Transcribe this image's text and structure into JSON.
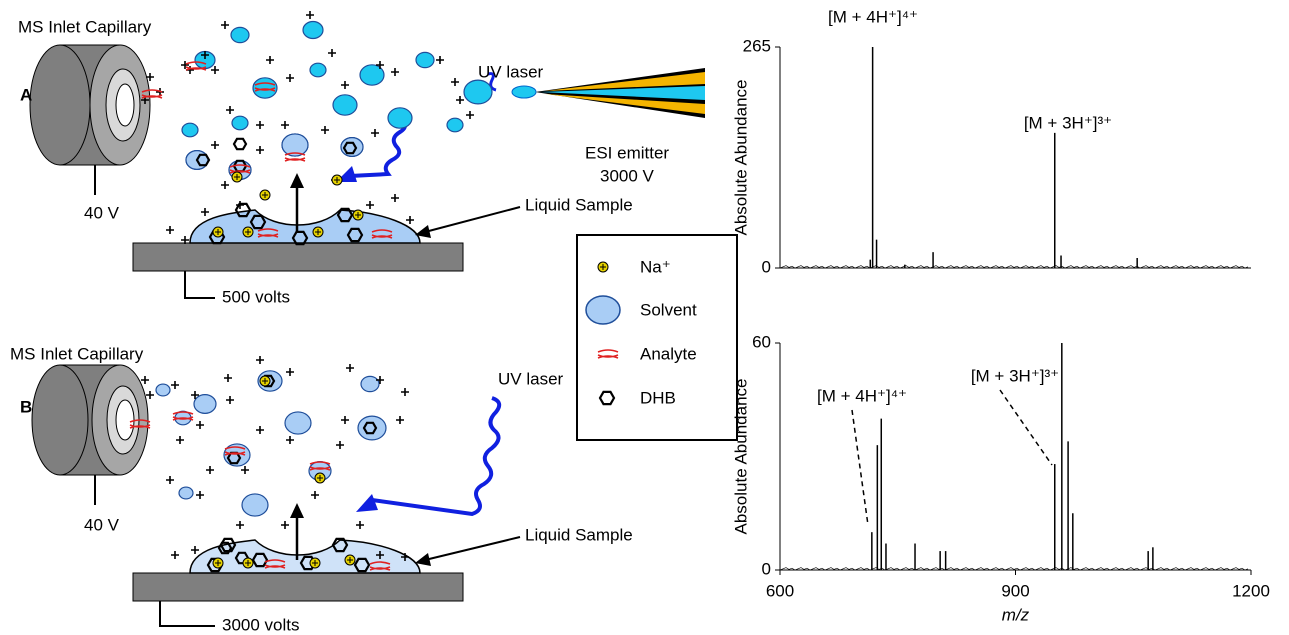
{
  "panel_a": {
    "label": "A",
    "capillary_label": "MS Inlet Capillary",
    "capillary_voltage": "40 V",
    "laser_label": "UV laser",
    "emitter_label": "ESI emitter",
    "emitter_voltage": "3000 V",
    "sample_label": "Liquid Sample",
    "plate_voltage": "500 volts"
  },
  "panel_b": {
    "label": "B",
    "capillary_label": "MS Inlet Capillary",
    "capillary_voltage": "40 V",
    "laser_label": "UV laser",
    "sample_label": "Liquid Sample",
    "plate_voltage": "3000 volts"
  },
  "legend": {
    "items": [
      "Na⁺",
      "Solvent",
      "Analyte",
      "DHB"
    ]
  },
  "chart_data": [
    {
      "type": "stem",
      "y_label": "Absolute Abundance",
      "annotations": [
        "[M + 4H⁺]⁴⁺",
        "[M + 3H⁺]³⁺"
      ],
      "x": [
        715,
        718,
        723,
        759,
        795,
        950,
        958,
        1055
      ],
      "values": [
        10,
        265,
        34,
        4,
        19,
        162,
        15,
        12
      ],
      "xlim": [
        600,
        1200
      ],
      "ylim": [
        0,
        265
      ],
      "yticks": [
        0,
        265
      ],
      "color": "#000000"
    },
    {
      "type": "stem",
      "y_label": "Absolute Abundance",
      "x_label": "m/z",
      "annotations": [
        "[M + 4H⁺]⁴⁺",
        "[M + 3H⁺]³⁺"
      ],
      "x": [
        717,
        724,
        729,
        735,
        772,
        804,
        811,
        950,
        959,
        967,
        973,
        1069,
        1075
      ],
      "values": [
        10,
        33,
        40,
        7,
        7,
        5,
        5,
        28,
        60,
        34,
        15,
        5,
        6
      ],
      "xlim": [
        600,
        1200
      ],
      "ylim": [
        0,
        60
      ],
      "yticks": [
        0,
        60
      ],
      "xticks": [
        600,
        900,
        1200
      ],
      "color": "#000000"
    }
  ]
}
